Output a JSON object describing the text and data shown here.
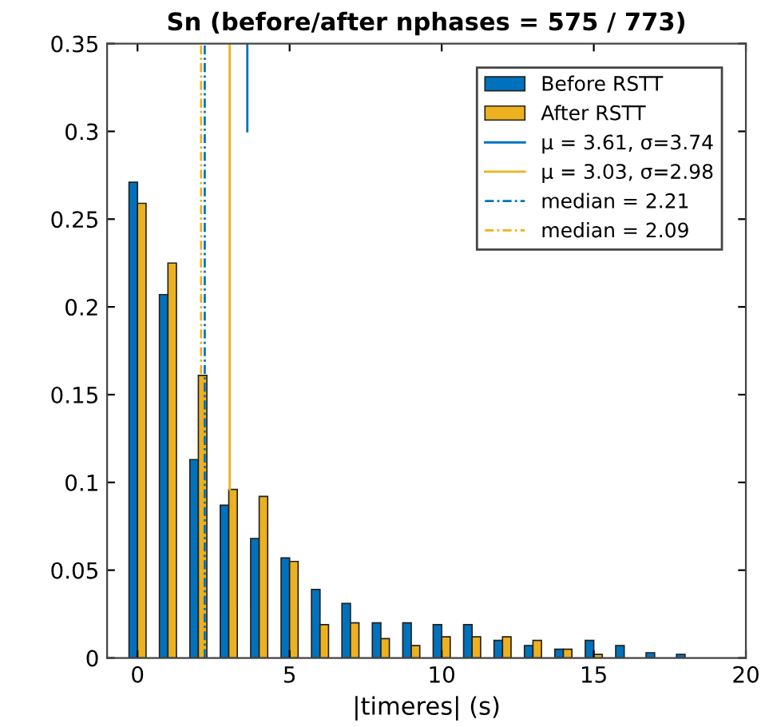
{
  "chart_data": {
    "type": "bar",
    "title": "Sn (before/after nphases = 575 / 773)",
    "xlabel": "|timeres| (s)",
    "x": [
      0,
      1,
      2,
      3,
      4,
      5,
      6,
      7,
      8,
      9,
      10,
      11,
      12,
      13,
      14,
      15,
      16,
      17,
      18
    ],
    "series": [
      {
        "name": "Before RSTT",
        "color": "#0072bd",
        "values": [
          0.271,
          0.207,
          0.113,
          0.087,
          0.068,
          0.057,
          0.039,
          0.031,
          0.02,
          0.02,
          0.019,
          0.019,
          0.01,
          0.007,
          0.005,
          0.01,
          0.007,
          0.003,
          0.002
        ]
      },
      {
        "name": "After RSTT",
        "color": "#edb120",
        "values": [
          0.259,
          0.225,
          0.161,
          0.096,
          0.092,
          0.055,
          0.019,
          0.02,
          0.011,
          0.007,
          0.012,
          0.012,
          0.012,
          0.01,
          0.005,
          0.002,
          null,
          null,
          null
        ]
      },
      {
        "name": "μ = 3.61, σ=3.74",
        "type": "line",
        "color": "#0072bd",
        "x": [
          3.61,
          3.61
        ],
        "values": [
          0.3,
          0.35
        ],
        "line_style": "solid"
      },
      {
        "name": "μ = 3.03, σ=2.98",
        "type": "line",
        "color": "#edb120",
        "x": [
          3.03,
          3.03
        ],
        "values": [
          0.096,
          0.35
        ],
        "line_style": "solid"
      },
      {
        "name": "median = 2.21",
        "type": "line",
        "color": "#0072bd",
        "x": [
          2.21,
          2.21
        ],
        "values": [
          0,
          0.35
        ],
        "line_style": "dashed"
      },
      {
        "name": "median = 2.09",
        "type": "line",
        "color": "#edb120",
        "x": [
          2.09,
          2.09
        ],
        "values": [
          0,
          0.35
        ],
        "line_style": "dashed"
      }
    ],
    "xlim": [
      -1,
      20
    ],
    "xticks": [
      0,
      5,
      10,
      15,
      20
    ],
    "ylim": [
      0,
      0.35
    ],
    "yticks": [
      0,
      0.05,
      0.1,
      0.15,
      0.2,
      0.25,
      0.3,
      0.35
    ],
    "grid": false,
    "legend": "top right"
  }
}
